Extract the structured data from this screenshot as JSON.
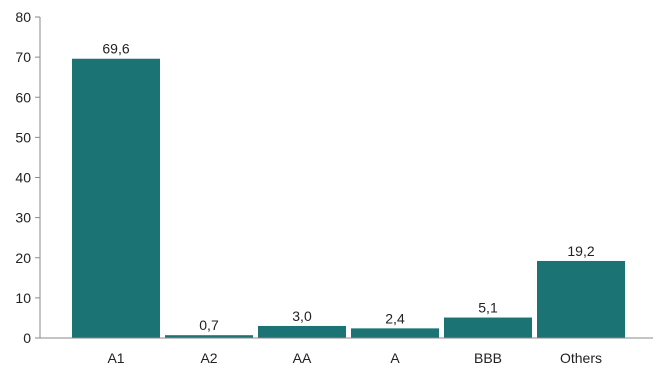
{
  "chart_data": {
    "type": "bar",
    "categories": [
      "A1",
      "A2",
      "AA",
      "A",
      "BBB",
      "Others"
    ],
    "values": [
      69.6,
      0.7,
      3.0,
      2.4,
      5.1,
      19.2
    ],
    "data_labels": [
      "69,6",
      "0,7",
      "3,0",
      "2,4",
      "5,1",
      "19,2"
    ],
    "y_ticks": [
      0,
      10,
      20,
      30,
      40,
      50,
      60,
      70,
      80
    ],
    "ylim": [
      0,
      80
    ],
    "title": "",
    "xlabel": "",
    "ylabel": "",
    "grid": false,
    "legend": "none",
    "bar_color": "#1b7374",
    "axis_color": "#8a8a8a"
  }
}
